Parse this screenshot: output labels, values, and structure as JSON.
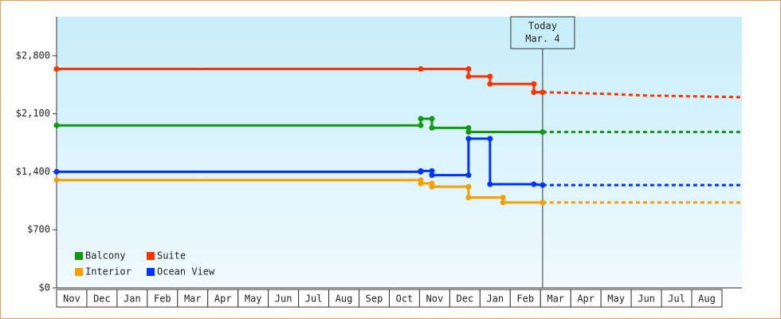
{
  "chart_data": {
    "type": "step-line",
    "categories": [
      "Nov",
      "Dec",
      "Jan",
      "Feb",
      "Mar",
      "Apr",
      "May",
      "Jun",
      "Jul",
      "Aug",
      "Sep",
      "Oct",
      "Nov",
      "Dec",
      "Jan",
      "Feb",
      "Mar",
      "Apr",
      "May",
      "Jun",
      "Jul",
      "Aug"
    ],
    "xlim": [
      0,
      22.66
    ],
    "ylim": [
      0,
      3270
    ],
    "yticks": [
      {
        "value": 0,
        "label": "$0"
      },
      {
        "value": 700,
        "label": "$700"
      },
      {
        "value": 1400,
        "label": "$1,400"
      },
      {
        "value": 2100,
        "label": "$2,100"
      },
      {
        "value": 2800,
        "label": "$2,800"
      }
    ],
    "today": {
      "x": 16.07,
      "label": [
        "Today",
        "Mar. 4"
      ]
    },
    "series": [
      {
        "name": "Balcony",
        "color": "#119911",
        "x": [
          0,
          12.04,
          12.04,
          12.41,
          12.41,
          13.62,
          13.62,
          16.07
        ],
        "values": [
          1960,
          1960,
          2040,
          2040,
          1930,
          1930,
          1880,
          1880
        ],
        "projection_x": [
          16.07,
          22.66
        ],
        "projection_values": [
          1880,
          1880
        ]
      },
      {
        "name": "Suite",
        "color": "#ff3300",
        "x": [
          0,
          12.04,
          13.62,
          13.62,
          14.33,
          14.33,
          15.78,
          15.78,
          16.07
        ],
        "values": [
          2640,
          2640,
          2640,
          2550,
          2550,
          2460,
          2460,
          2360,
          2360
        ],
        "projection_x": [
          16.07,
          18.2,
          19.5,
          22.66
        ],
        "projection_values": [
          2360,
          2340,
          2320,
          2300
        ]
      },
      {
        "name": "Interior",
        "color": "#f5a000",
        "x": [
          0,
          12.04,
          12.04,
          12.41,
          12.41,
          13.62,
          13.62,
          14.76,
          14.76,
          16.07
        ],
        "values": [
          1300,
          1300,
          1260,
          1260,
          1220,
          1220,
          1090,
          1090,
          1030,
          1030
        ],
        "projection_x": [
          16.07,
          22.66
        ],
        "projection_values": [
          1030,
          1030
        ]
      },
      {
        "name": "Ocean View",
        "color": "#0033ff",
        "x": [
          0,
          12.04,
          12.04,
          12.41,
          12.41,
          13.62,
          13.62,
          14.33,
          14.33,
          15.78,
          16.07
        ],
        "values": [
          1400,
          1400,
          1410,
          1410,
          1360,
          1360,
          1800,
          1800,
          1250,
          1250,
          1240
        ],
        "projection_x": [
          16.07,
          22.66
        ],
        "projection_values": [
          1240,
          1240
        ]
      }
    ]
  }
}
